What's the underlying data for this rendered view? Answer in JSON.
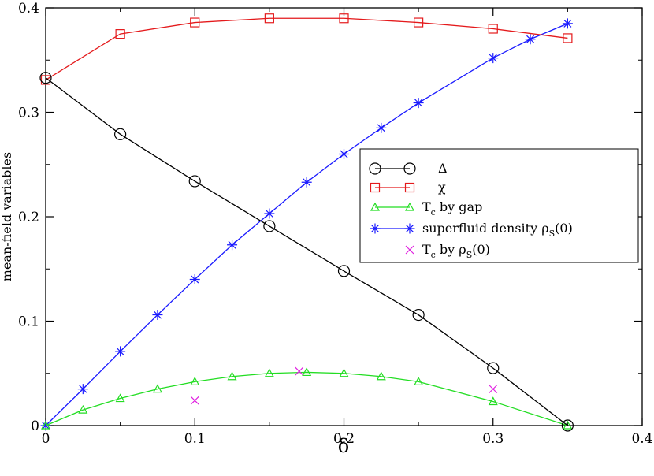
{
  "chart_data": {
    "type": "line",
    "xlabel": "δ",
    "ylabel": "mean-field variables",
    "xlim": [
      0,
      0.4
    ],
    "ylim": [
      0,
      0.4
    ],
    "xticks": [
      0,
      0.1,
      0.2,
      0.3,
      0.4
    ],
    "yticks": [
      0,
      0.1,
      0.2,
      0.3,
      0.4
    ],
    "xtick_labels": [
      "0",
      "0.1",
      "0.2",
      "0.3",
      "0.4"
    ],
    "ytick_labels": [
      "0",
      "0.1",
      "0.2",
      "0.3",
      "0.4"
    ],
    "grid": false,
    "legend_position": "center-right",
    "series": [
      {
        "name": "Δ",
        "color": "#000000",
        "marker": "circle",
        "line": true,
        "x": [
          0,
          0.05,
          0.1,
          0.15,
          0.2,
          0.25,
          0.3,
          0.35
        ],
        "y": [
          0.333,
          0.279,
          0.234,
          0.191,
          0.148,
          0.106,
          0.055,
          0.0
        ]
      },
      {
        "name": "χ",
        "color": "#e41a1c",
        "marker": "square",
        "line": true,
        "x": [
          0,
          0.05,
          0.1,
          0.15,
          0.2,
          0.25,
          0.3,
          0.35
        ],
        "y": [
          0.331,
          0.375,
          0.386,
          0.39,
          0.39,
          0.386,
          0.38,
          0.371
        ]
      },
      {
        "name": "T_c by gap",
        "color": "#22dd22",
        "marker": "triangle",
        "line": true,
        "x": [
          0,
          0.025,
          0.05,
          0.075,
          0.1,
          0.125,
          0.15,
          0.175,
          0.2,
          0.225,
          0.25,
          0.3,
          0.35
        ],
        "y": [
          0.0,
          0.015,
          0.026,
          0.035,
          0.042,
          0.047,
          0.05,
          0.051,
          0.05,
          0.047,
          0.042,
          0.023,
          0.0
        ]
      },
      {
        "name": "superfluid density ρ_S(0)",
        "color": "#1a1aff",
        "marker": "asterisk",
        "line": true,
        "x": [
          0,
          0.025,
          0.05,
          0.075,
          0.1,
          0.125,
          0.15,
          0.175,
          0.2,
          0.225,
          0.25,
          0.3,
          0.325,
          0.35
        ],
        "y": [
          0.0,
          0.035,
          0.071,
          0.106,
          0.14,
          0.173,
          0.203,
          0.233,
          0.26,
          0.285,
          0.309,
          0.352,
          0.37,
          0.385
        ]
      },
      {
        "name": "T_c by ρ_S(0)",
        "color": "#e020e0",
        "marker": "x",
        "line": false,
        "x": [
          0.1,
          0.17,
          0.3
        ],
        "y": [
          0.024,
          0.052,
          0.035
        ]
      }
    ]
  }
}
